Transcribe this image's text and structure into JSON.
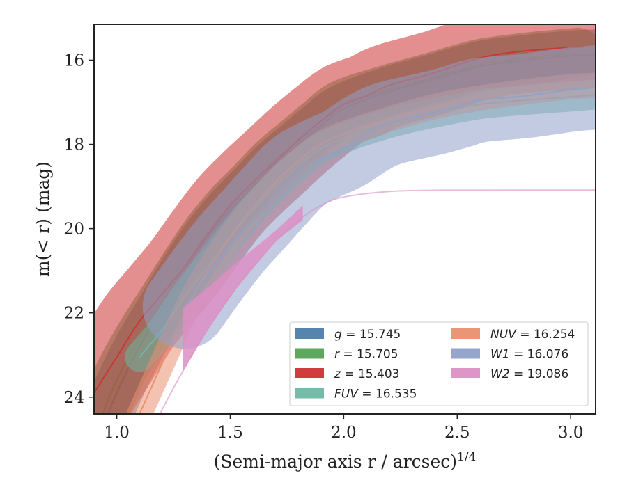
{
  "chart_data": {
    "type": "line",
    "title": "",
    "xlabel": "(Semi-major axis r / arcsec)",
    "xlabel_sup": "1/4",
    "ylabel": "m(< r) (mag)",
    "xlim": [
      0.9,
      3.11
    ],
    "ylim": [
      24.4,
      15.15
    ],
    "y_inverted": true,
    "x_ticks": [
      1.0,
      1.5,
      2.0,
      2.5,
      3.0
    ],
    "x_tick_labels": [
      "1.0",
      "1.5",
      "2.0",
      "2.5",
      "3.0"
    ],
    "y_ticks": [
      16,
      18,
      20,
      22,
      24
    ],
    "y_tick_labels": [
      "16",
      "18",
      "20",
      "22",
      "24"
    ],
    "grid": false,
    "legend_position": "lower-right",
    "series": [
      {
        "name": "g",
        "legend_label": "= 15.745",
        "color": "#4c7ea8",
        "x": [
          0.9,
          1.0,
          1.1,
          1.2,
          1.3,
          1.4,
          1.5,
          1.6,
          1.7,
          1.8,
          1.9,
          2.0,
          2.2,
          2.4,
          2.6,
          2.8,
          3.0,
          3.11
        ],
        "y": [
          25.2,
          23.9,
          22.8,
          21.9,
          21.0,
          20.2,
          19.55,
          19.0,
          18.45,
          18.0,
          17.55,
          17.15,
          16.75,
          16.45,
          16.15,
          16.0,
          15.9,
          15.87
        ],
        "band": 0.12
      },
      {
        "name": "r",
        "legend_label": "= 15.705",
        "color": "#55a355",
        "x": [
          0.9,
          1.0,
          1.1,
          1.2,
          1.3,
          1.4,
          1.5,
          1.6,
          1.7,
          1.8,
          1.9,
          2.0,
          2.2,
          2.4,
          2.6,
          2.8,
          3.03
        ],
        "y": [
          24.9,
          23.6,
          22.6,
          21.75,
          20.9,
          20.1,
          19.45,
          18.9,
          18.35,
          17.9,
          17.45,
          17.05,
          16.7,
          16.4,
          16.1,
          15.95,
          15.83
        ],
        "band": 0.12
      },
      {
        "name": "z",
        "legend_label": "= 15.403",
        "color": "#cc3333",
        "x": [
          0.9,
          1.0,
          1.1,
          1.2,
          1.3,
          1.4,
          1.5,
          1.6,
          1.7,
          1.8,
          1.9,
          2.0,
          2.1,
          2.2,
          2.4,
          2.6,
          2.8,
          3.06
        ],
        "y": [
          23.9,
          23.05,
          22.2,
          21.55,
          20.9,
          20.15,
          19.45,
          18.9,
          18.4,
          17.9,
          17.45,
          17.05,
          16.85,
          16.6,
          16.3,
          15.95,
          15.78,
          15.68
        ],
        "band": 0.2
      },
      {
        "name": "FUV",
        "legend_label": "= 16.535",
        "color": "#6fb7a2",
        "x": [
          1.1,
          1.2,
          1.3,
          1.4,
          1.5,
          1.6,
          1.7,
          1.8,
          1.9,
          2.0,
          2.2,
          2.4,
          2.6,
          2.8,
          3.0,
          3.11
        ],
        "y": [
          23.05,
          22.4,
          21.6,
          20.9,
          20.2,
          19.55,
          19.0,
          18.5,
          18.1,
          17.85,
          17.5,
          17.25,
          17.05,
          16.95,
          16.87,
          16.82
        ],
        "band": 0.07
      },
      {
        "name": "NUV",
        "legend_label": "= 16.254",
        "color": "#e98f6f",
        "x": [
          1.1,
          1.2,
          1.3,
          1.4,
          1.5,
          1.6,
          1.7,
          1.8,
          1.9,
          2.0,
          2.2,
          2.4,
          2.6,
          2.8,
          3.0,
          3.11
        ],
        "y": [
          24.4,
          23.2,
          22.0,
          21.0,
          20.2,
          19.5,
          18.9,
          18.4,
          18.0,
          17.75,
          17.4,
          17.1,
          16.9,
          16.75,
          16.63,
          16.6
        ],
        "band": 0.06
      },
      {
        "name": "W1",
        "legend_label": "= 16.076",
        "color": "#8fa0c8",
        "x": [
          1.3,
          1.4,
          1.5,
          1.6,
          1.7,
          1.8,
          1.9,
          2.0,
          2.1,
          2.2,
          2.4,
          2.5,
          2.6,
          2.8,
          3.0,
          3.11
        ],
        "y": [
          21.85,
          21.1,
          20.4,
          19.8,
          19.2,
          18.65,
          18.35,
          18.1,
          17.75,
          17.5,
          17.25,
          17.1,
          16.95,
          16.85,
          16.7,
          16.65
        ],
        "band": 0.2
      },
      {
        "name": "W2",
        "legend_label": "= 19.086",
        "color": "#dc8fc4",
        "x": [
          1.1,
          1.2,
          1.3,
          1.4,
          1.5,
          1.6,
          1.7,
          1.8,
          1.9,
          2.0,
          2.2,
          2.4,
          2.6,
          2.8,
          3.0,
          3.11
        ],
        "y": [
          25.5,
          24.3,
          23.3,
          22.4,
          21.6,
          20.9,
          20.3,
          19.8,
          19.45,
          19.25,
          19.12,
          19.09,
          19.088,
          19.087,
          19.086,
          19.086
        ],
        "band_x": [
          1.29,
          1.4,
          1.53,
          1.7,
          1.82
        ],
        "band_upper": [
          21.9,
          21.4,
          20.8,
          20.05,
          19.45
        ],
        "band_lower": [
          23.4,
          22.4,
          21.4,
          20.3,
          19.8
        ]
      }
    ]
  }
}
